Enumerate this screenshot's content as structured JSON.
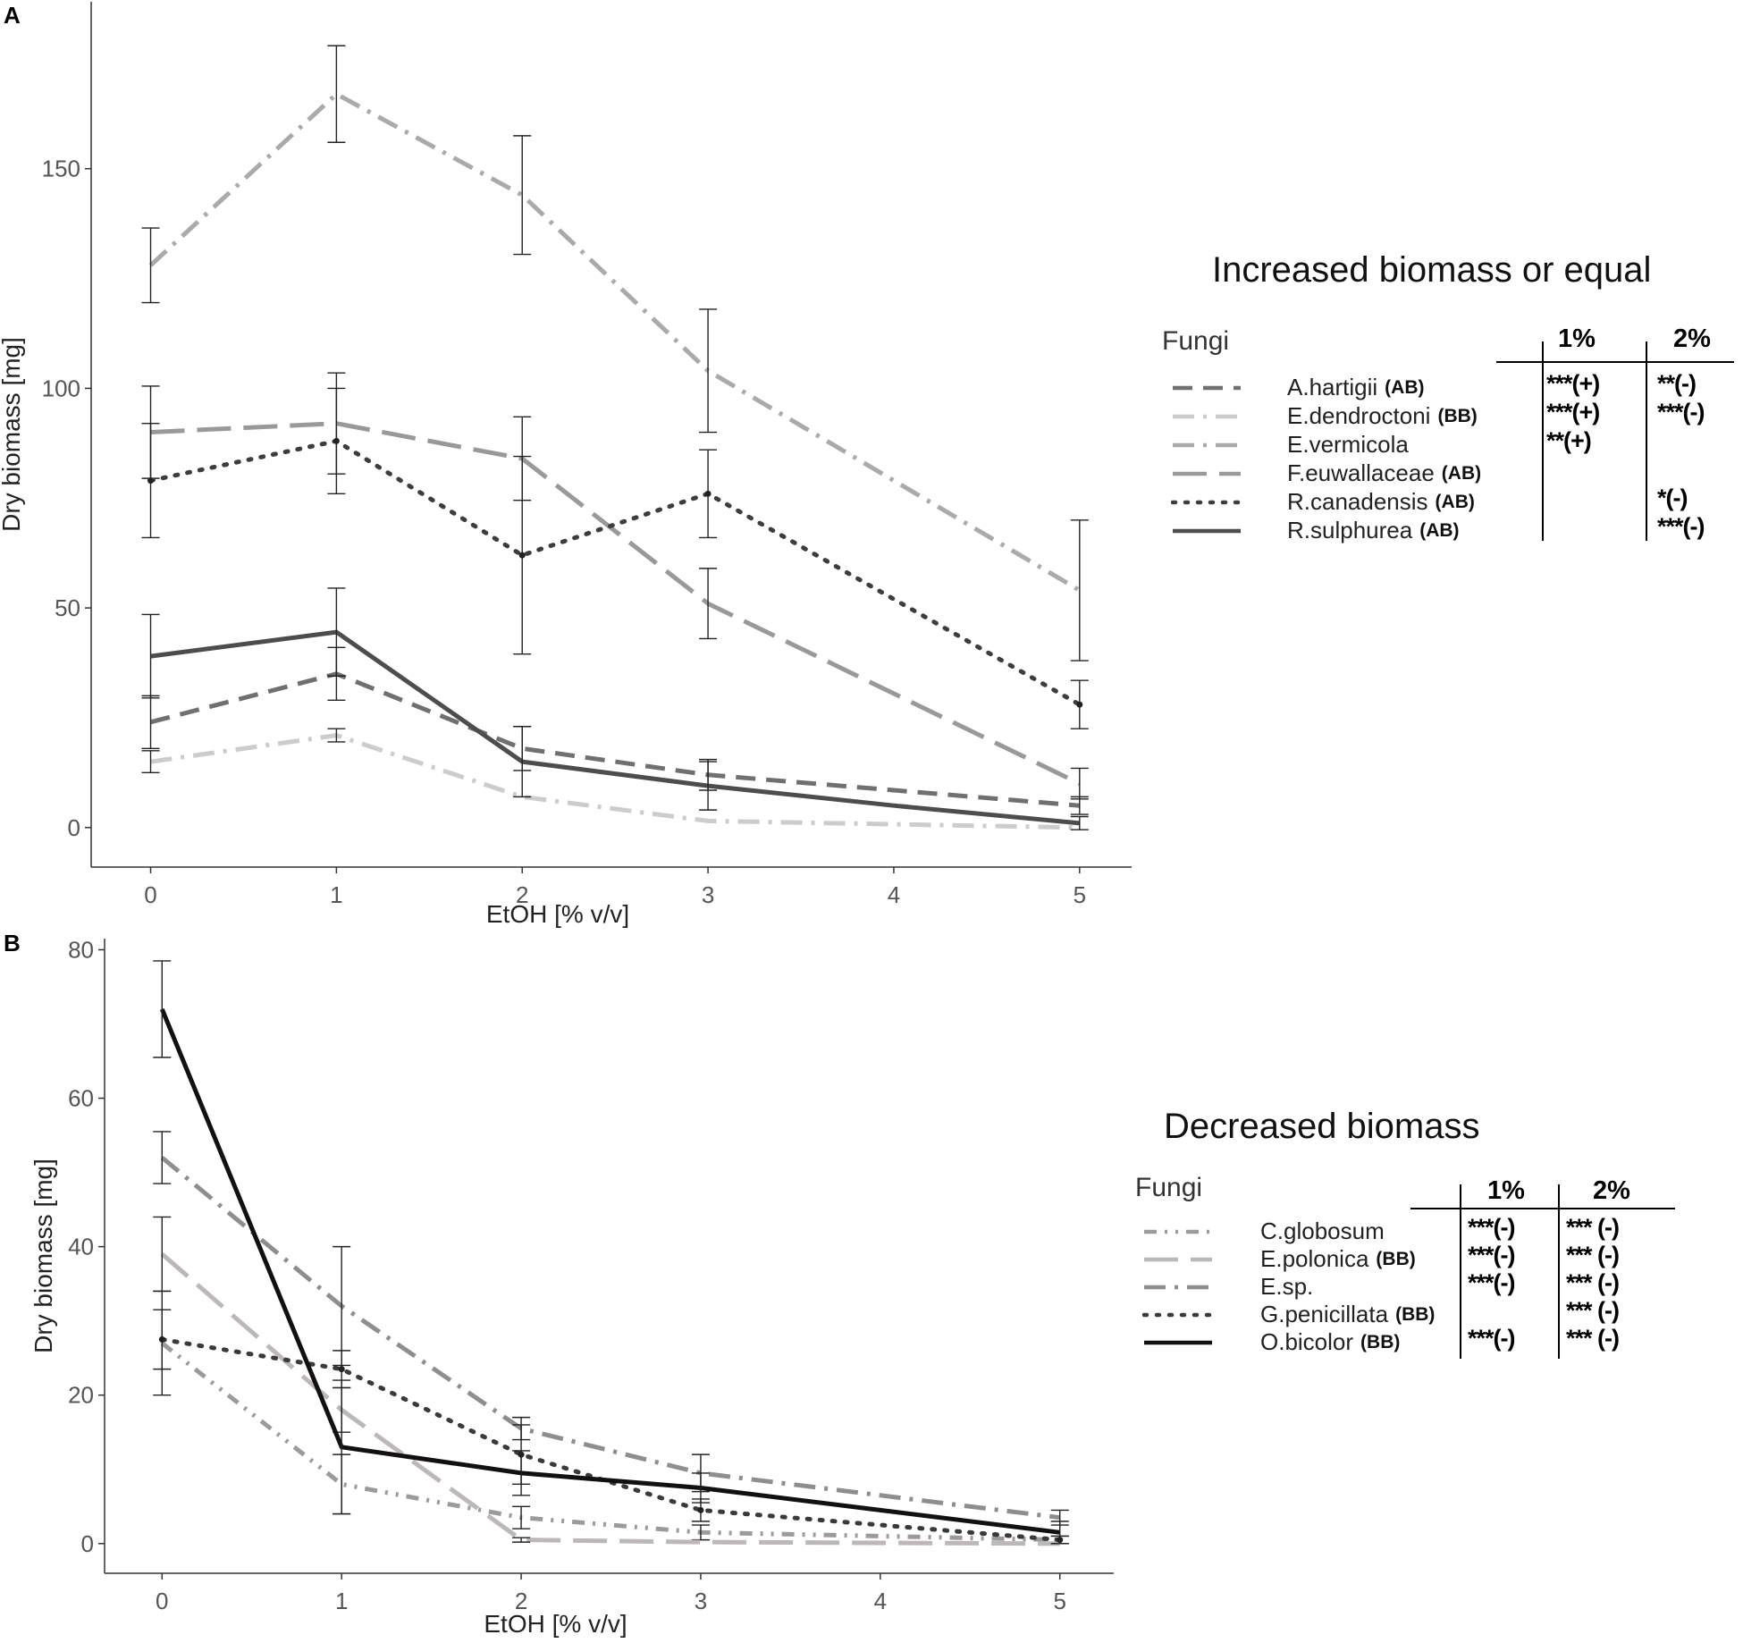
{
  "panels": {
    "a": {
      "label": "A",
      "legend_title": "Increased biomass or equal",
      "legend_heading": "Fungi",
      "col1": "1%",
      "col2": "2%"
    },
    "b": {
      "label": "B",
      "legend_title": "Decreased biomass",
      "legend_heading": "Fungi",
      "col1": "1%",
      "col2": "2%"
    }
  },
  "chart_data": [
    {
      "type": "line",
      "panel": "A",
      "xlabel": "EtOH [% v/v]",
      "ylabel": "Dry biomass [mg]",
      "x": [
        0,
        1,
        2,
        3,
        4,
        5
      ],
      "xticks": [
        "0",
        "1",
        "2",
        "3",
        "4",
        "5"
      ],
      "yticks": [
        "0",
        "50",
        "100",
        "150"
      ],
      "xlim": [
        -0.32,
        5.28
      ],
      "ylim": [
        -9,
        188
      ],
      "series": [
        {
          "name": "A.hartigii",
          "tag": "(AB)",
          "style": "dash",
          "color": "#707070",
          "x": [
            0,
            1,
            2,
            3,
            5
          ],
          "values": [
            24,
            35,
            18,
            12,
            5
          ],
          "errors": [
            6,
            6,
            5,
            3.5,
            2
          ],
          "sig1": "***(+)",
          "sig2": "**(-)"
        },
        {
          "name": "E.dendroctoni",
          "tag": "(BB)",
          "style": "dashdot",
          "color": "#cccccc",
          "x": [
            0,
            1,
            2,
            3,
            5
          ],
          "values": [
            15,
            21,
            7,
            1.5,
            0
          ],
          "errors": [
            2.5,
            1.5,
            0,
            0,
            0
          ],
          "sig1": "***(+)",
          "sig2": "***(-)"
        },
        {
          "name": "E.vermicola",
          "tag": "",
          "style": "dashdot",
          "color": "#aaaaaa",
          "x": [
            0,
            1,
            2,
            3,
            5
          ],
          "values": [
            128,
            167,
            144,
            104,
            54
          ],
          "errors": [
            8.5,
            11,
            13.5,
            14,
            16
          ],
          "sig1": "**(+)",
          "sig2": ""
        },
        {
          "name": "F.euwallaceae",
          "tag": "(AB)",
          "style": "longdash",
          "color": "#999999",
          "x": [
            0,
            1,
            2,
            3,
            5
          ],
          "values": [
            90,
            92,
            84,
            51,
            10
          ],
          "errors": [
            10.5,
            11.5,
            9.5,
            8,
            3.5
          ],
          "sig1": "",
          "sig2": ""
        },
        {
          "name": "R.canadensis",
          "tag": "(AB)",
          "style": "dot",
          "color": "#3d3d3d",
          "x": [
            0,
            1,
            2,
            3,
            5
          ],
          "values": [
            79,
            88,
            62,
            76,
            28
          ],
          "errors": [
            13,
            12,
            22.5,
            10,
            5.5
          ],
          "sig1": "",
          "sig2": "*(-)"
        },
        {
          "name": "R.sulphurea",
          "tag": "(AB)",
          "style": "solid",
          "color": "#4d4d4d",
          "x": [
            0,
            1,
            2,
            3,
            4,
            5
          ],
          "values": [
            39,
            44.5,
            15,
            9.5,
            5,
            1
          ],
          "errors": [
            9.5,
            10,
            8,
            5.5,
            0,
            1.5
          ],
          "sig1": "",
          "sig2": "***(-)"
        }
      ]
    },
    {
      "type": "line",
      "panel": "B",
      "xlabel": "EtOH [% v/v]",
      "ylabel": "Dry biomass [mg]",
      "x": [
        0,
        1,
        2,
        3,
        4,
        5
      ],
      "xticks": [
        "0",
        "1",
        "2",
        "3",
        "4",
        "5"
      ],
      "yticks": [
        "0",
        "20",
        "40",
        "60",
        "80"
      ],
      "xlim": [
        -0.32,
        5.3
      ],
      "ylim": [
        -4,
        81.5
      ],
      "series": [
        {
          "name": "C.globosum",
          "tag": "",
          "style": "dashdotdot",
          "color": "#9b9b9b",
          "x": [
            0,
            1,
            2,
            3,
            5
          ],
          "values": [
            27,
            8,
            3.5,
            1.5,
            0.5
          ],
          "errors": [
            7,
            4,
            1.5,
            1,
            0.5
          ],
          "sig1": "***(-)",
          "sig2": "*** (-)"
        },
        {
          "name": "E.polonica",
          "tag": "(BB)",
          "style": "longdash",
          "color": "#bdb7bb",
          "x": [
            0,
            1,
            2,
            3,
            5
          ],
          "values": [
            39,
            18,
            0.5,
            0.2,
            0
          ],
          "errors": [
            5,
            3,
            0.3,
            0,
            0
          ],
          "sig1": "***(-)",
          "sig2": "*** (-)"
        },
        {
          "name": "E.sp.",
          "tag": "",
          "style": "dashdot",
          "color": "#8e8e8e",
          "x": [
            0,
            1,
            2,
            3,
            5
          ],
          "values": [
            52,
            32,
            15.5,
            9.5,
            3.5
          ],
          "errors": [
            3.5,
            8,
            1.5,
            2.5,
            1
          ],
          "sig1": "***(-)",
          "sig2": "*** (-)"
        },
        {
          "name": "G.penicillata",
          "tag": "(BB)",
          "style": "dot",
          "color": "#3a3a3a",
          "x": [
            0,
            1,
            2,
            3,
            5
          ],
          "values": [
            27.5,
            23.5,
            12,
            4.5,
            0.5
          ],
          "errors": [
            4,
            2.5,
            4,
            1.5,
            0.5
          ],
          "sig1": "",
          "sig2": "*** (-)"
        },
        {
          "name": "O.bicolor",
          "tag": "(BB)",
          "style": "solid",
          "color": "#111111",
          "x": [
            0,
            1,
            2,
            3,
            4,
            5
          ],
          "values": [
            72,
            13,
            9.5,
            7.5,
            4.5,
            1.5
          ],
          "errors": [
            6.5,
            9,
            3,
            2,
            0,
            1.5
          ],
          "sig1": "***(-)",
          "sig2": "*** (-)"
        }
      ]
    }
  ]
}
